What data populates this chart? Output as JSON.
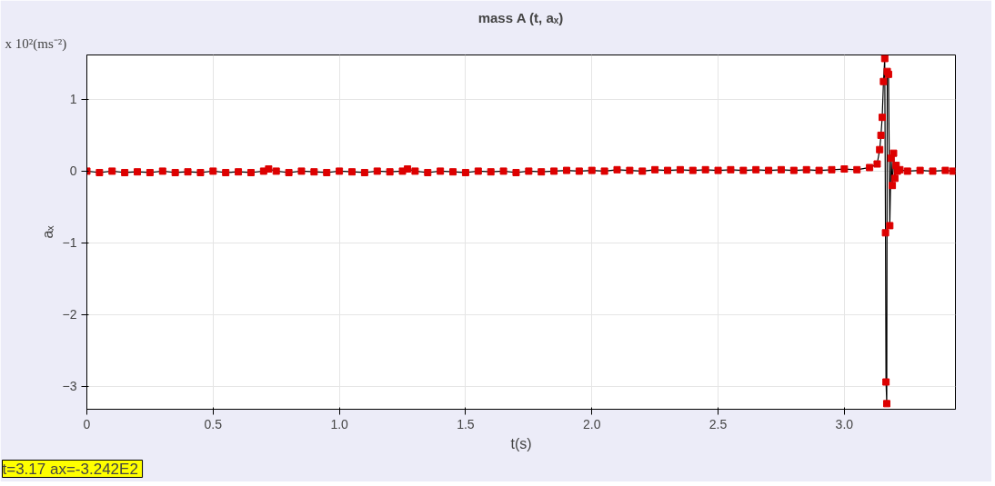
{
  "chart_data": {
    "type": "line",
    "title": "mass A (t, aₓ)",
    "xlabel": "t(s)",
    "ylabel": "aₓ",
    "annotations": [
      "x 10²(ms⁻²)",
      "t=3.17  ax=-3.242E2"
    ],
    "x": [
      0,
      0.05,
      0.1,
      0.15,
      0.2,
      0.25,
      0.3,
      0.35,
      0.4,
      0.45,
      0.5,
      0.55,
      0.6,
      0.65,
      0.7,
      0.72,
      0.75,
      0.8,
      0.85,
      0.9,
      0.95,
      1.0,
      1.05,
      1.1,
      1.15,
      1.2,
      1.25,
      1.27,
      1.3,
      1.35,
      1.4,
      1.45,
      1.5,
      1.55,
      1.6,
      1.65,
      1.7,
      1.75,
      1.8,
      1.85,
      1.9,
      1.95,
      2.0,
      2.05,
      2.1,
      2.15,
      2.2,
      2.25,
      2.3,
      2.35,
      2.4,
      2.45,
      2.5,
      2.55,
      2.6,
      2.65,
      2.7,
      2.75,
      2.8,
      2.85,
      2.9,
      2.95,
      3.0,
      3.05,
      3.1,
      3.13,
      3.14,
      3.145,
      3.15,
      3.155,
      3.16,
      3.163,
      3.165,
      3.168,
      3.17,
      3.175,
      3.18,
      3.185,
      3.19,
      3.195,
      3.2,
      3.205,
      3.21,
      3.22,
      3.25,
      3.3,
      3.35,
      3.4,
      3.43
    ],
    "series": [
      {
        "color": "#dd0000",
        "values": [
          0,
          -0.02,
          0,
          -0.02,
          -0.01,
          -0.02,
          0,
          -0.02,
          -0.01,
          -0.02,
          0,
          -0.02,
          -0.01,
          -0.02,
          0,
          0.03,
          0,
          -0.02,
          0,
          -0.01,
          -0.02,
          0,
          -0.01,
          -0.02,
          0,
          -0.01,
          0,
          0.03,
          0,
          -0.02,
          0,
          -0.01,
          -0.02,
          0,
          -0.01,
          0,
          -0.02,
          0,
          -0.01,
          0,
          0.01,
          0,
          0.01,
          0,
          0.02,
          0.01,
          0,
          0.02,
          0.01,
          0.02,
          0.01,
          0.02,
          0.01,
          0.02,
          0.01,
          0.02,
          0.01,
          0.02,
          0.01,
          0.02,
          0.01,
          0.02,
          0.03,
          0.02,
          0.05,
          0.1,
          0.3,
          0.5,
          0.75,
          1.25,
          1.57,
          -0.86,
          -2.94,
          -3.242,
          1.39,
          1.35,
          -0.76,
          0.18,
          -0.2,
          0.25,
          -0.1,
          0.08,
          0,
          0.02,
          0,
          0.01,
          0,
          0.01,
          0
        ]
      }
    ],
    "marker": "square",
    "grid": true,
    "xlim": [
      0,
      3.44
    ],
    "xticks": [
      0,
      0.5,
      {
        "value": 1,
        "label": "1.0"
      },
      1.5,
      {
        "value": 2,
        "label": "2.0"
      },
      2.5,
      {
        "value": 3,
        "label": "3.0"
      }
    ],
    "ylim": [
      -3.32,
      1.62
    ],
    "yticks": [
      -3,
      -2,
      -1,
      0,
      1
    ]
  }
}
